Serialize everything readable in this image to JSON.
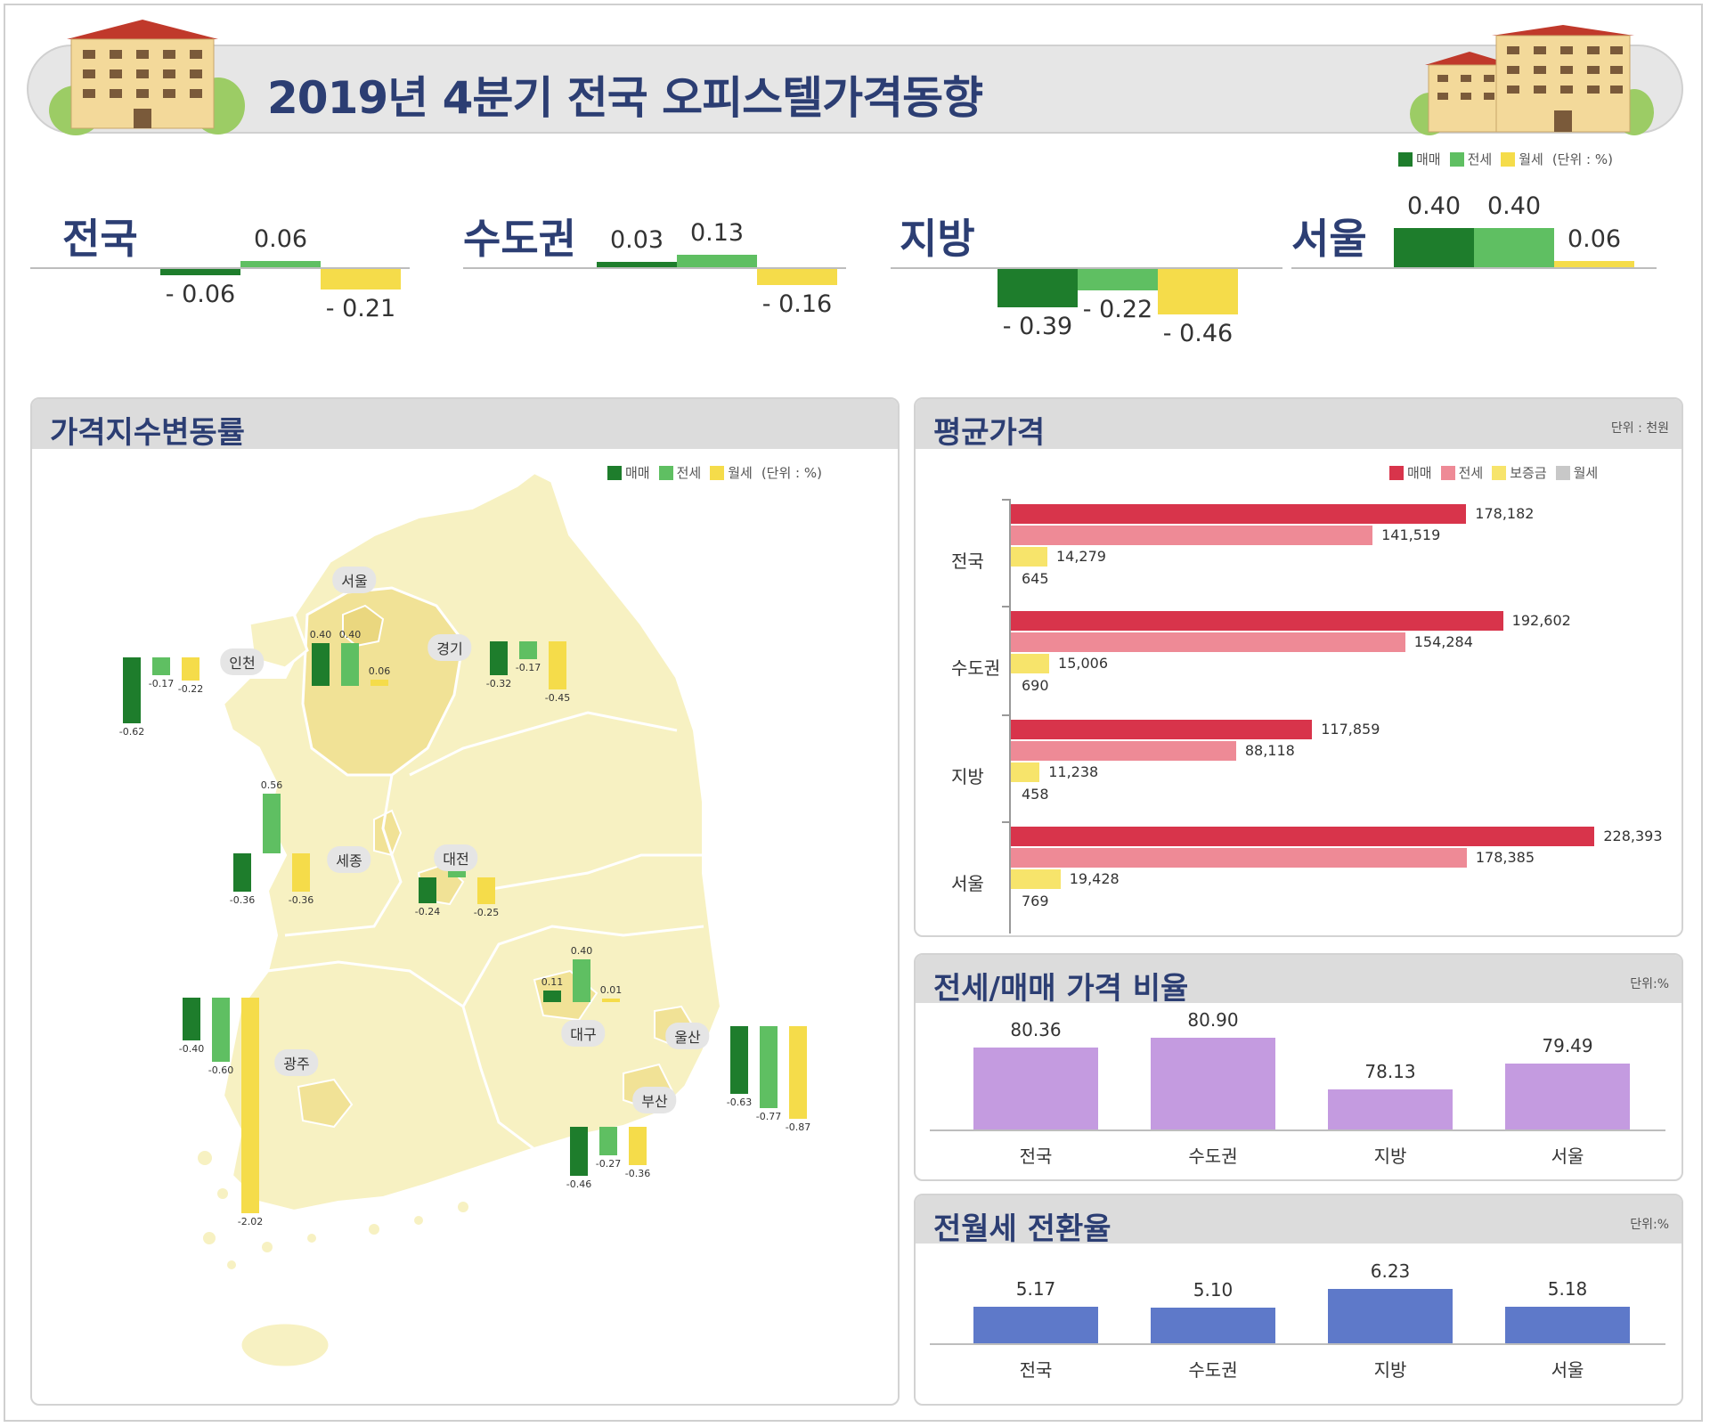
{
  "title": "2019년 4분기 전국 오피스텔가격동향",
  "colors": {
    "sale": "#1e7d2c",
    "jeonse": "#5fbf62",
    "monthly": "#f5dc4a",
    "avg_sale": "#d8344b",
    "avg_jeonse": "#ee8a96",
    "avg_deposit": "#f7e46b",
    "avg_monthly": "#c8c8c8",
    "ratio": "#c49be0",
    "conversion": "#5e79c9",
    "map_land": "#f7f1c2",
    "map_highlight": "#f1e296"
  },
  "top_legend": {
    "items": [
      "매매",
      "전세",
      "월세"
    ],
    "unit": "(단위 : %)"
  },
  "summary": {
    "regions": [
      {
        "name": "전국",
        "values": [
          -0.06,
          0.06,
          -0.21
        ],
        "labels": [
          "- 0.06",
          "0.06",
          "- 0.21"
        ]
      },
      {
        "name": "수도권",
        "values": [
          0.03,
          0.13,
          -0.16
        ],
        "labels": [
          "0.03",
          "0.13",
          "- 0.16"
        ]
      },
      {
        "name": "지방",
        "values": [
          -0.39,
          -0.22,
          -0.46
        ],
        "labels": [
          "- 0.39",
          "- 0.22",
          "- 0.46"
        ]
      },
      {
        "name": "서울",
        "values": [
          0.4,
          0.4,
          0.06
        ],
        "labels": [
          "0.40",
          "0.40",
          "0.06"
        ]
      }
    ]
  },
  "map_panel": {
    "title": "가격지수변동률",
    "legend": {
      "items": [
        "매매",
        "전세",
        "월세"
      ],
      "unit": "(단위 : %)"
    },
    "cities": [
      "서울",
      "인천",
      "경기",
      "세종",
      "대전",
      "대구",
      "울산",
      "부산",
      "광주"
    ],
    "bar_groups": [
      {
        "values": [
          0.4,
          0.4,
          0.06
        ],
        "labels": [
          "0.40",
          "0.40",
          "0.06"
        ]
      },
      {
        "values": [
          -0.62,
          -0.17,
          -0.22
        ],
        "labels": [
          "-0.62",
          "-0.17",
          "-0.22"
        ]
      },
      {
        "values": [
          -0.32,
          -0.17,
          -0.45
        ],
        "labels": [
          "-0.32",
          "-0.17",
          "-0.45"
        ]
      },
      {
        "values": [
          -0.36,
          0.56,
          -0.36
        ],
        "labels": [
          "-0.36",
          "0.56",
          "-0.36"
        ]
      },
      {
        "values": [
          -0.24,
          0.06,
          -0.25
        ],
        "labels": [
          "-0.24",
          "0.06",
          "-0.25"
        ]
      },
      {
        "values": [
          0.11,
          0.4,
          0.01
        ],
        "labels": [
          "0.11",
          "0.40",
          "0.01"
        ]
      },
      {
        "values": [
          -0.63,
          -0.77,
          -0.87
        ],
        "labels": [
          "-0.63",
          "-0.77",
          "-0.87"
        ]
      },
      {
        "values": [
          -0.46,
          -0.27,
          -0.36
        ],
        "labels": [
          "-0.46",
          "-0.27",
          "-0.36"
        ]
      },
      {
        "values": [
          -0.4,
          -0.6,
          -2.02
        ],
        "labels": [
          "-0.40",
          "-0.60",
          "-2.02"
        ]
      }
    ]
  },
  "avg_panel": {
    "title": "평균가격",
    "unit": "단위 : 천원",
    "legend": [
      "매매",
      "전세",
      "보증금",
      "월세"
    ]
  },
  "ratio_panel": {
    "title": "전세/매매 가격 비율",
    "unit": "단위:%"
  },
  "conv_panel": {
    "title": "전월세 전환율",
    "unit": "단위:%"
  },
  "chart_data": [
    {
      "type": "bar",
      "title": "",
      "categories": [
        "전국",
        "수도권",
        "지방",
        "서울"
      ],
      "series": [
        {
          "name": "매매",
          "values": [
            -0.06,
            0.03,
            -0.39,
            0.4
          ]
        },
        {
          "name": "전세",
          "values": [
            0.06,
            0.13,
            -0.22,
            0.4
          ]
        },
        {
          "name": "월세",
          "values": [
            -0.21,
            -0.16,
            -0.46,
            0.06
          ]
        }
      ],
      "unit": "(단위 : %)"
    },
    {
      "type": "bar",
      "title": "평균가격",
      "orientation": "horizontal",
      "categories": [
        "전국",
        "수도권",
        "지방",
        "서울"
      ],
      "series": [
        {
          "name": "매매",
          "values": [
            178182,
            192602,
            117859,
            228393
          ],
          "labels": [
            "178,182",
            "192,602",
            "117,859",
            "228,393"
          ]
        },
        {
          "name": "전세",
          "values": [
            141519,
            154284,
            88118,
            178385
          ],
          "labels": [
            "141,519",
            "154,284",
            "88,118",
            "178,385"
          ]
        },
        {
          "name": "보증금",
          "values": [
            14279,
            15006,
            11238,
            19428
          ],
          "labels": [
            "14,279",
            "15,006",
            "11,238",
            "19,428"
          ]
        },
        {
          "name": "월세",
          "values": [
            645,
            690,
            458,
            769
          ],
          "labels": [
            "645",
            "690",
            "458",
            "769"
          ]
        }
      ],
      "unit": "단위 : 천원"
    },
    {
      "type": "bar",
      "title": "전세/매매 가격 비율",
      "categories": [
        "전국",
        "수도권",
        "지방",
        "서울"
      ],
      "values": [
        80.36,
        80.9,
        78.13,
        79.49
      ],
      "labels": [
        "80.36",
        "80.90",
        "78.13",
        "79.49"
      ],
      "ylim": [
        76,
        81.5
      ]
    },
    {
      "type": "bar",
      "title": "전월세 전환율",
      "categories": [
        "전국",
        "수도권",
        "지방",
        "서울"
      ],
      "values": [
        5.17,
        5.1,
        6.23,
        5.18
      ],
      "labels": [
        "5.17",
        "5.10",
        "6.23",
        "5.18"
      ],
      "ylim": [
        3,
        6.5
      ]
    }
  ]
}
